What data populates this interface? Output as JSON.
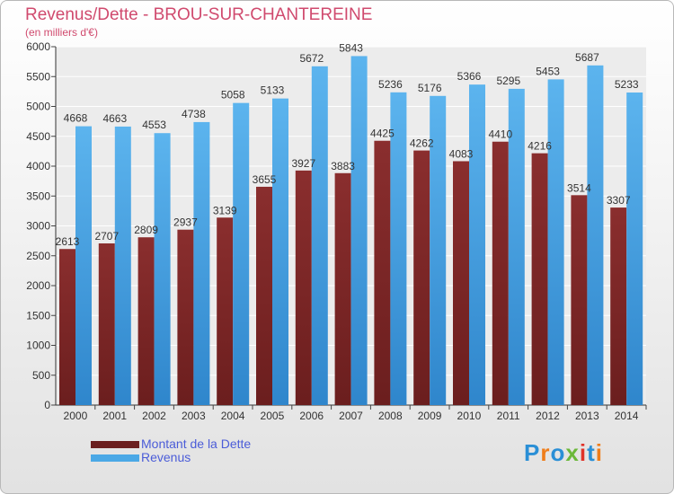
{
  "header": {
    "title": "Revenus/Dette - BROU-SUR-CHANTEREINE",
    "subtitle": "(en milliers d'€)"
  },
  "colors": {
    "title": "#d04a6e",
    "dette": "#6b1e1e",
    "revenus": "#4aa8e6",
    "legend_text": "#4b5cd8"
  },
  "legend": {
    "dette_label": "Montant de la Dette",
    "revenus_label": "Revenus"
  },
  "logo": {
    "text": "Proxiti",
    "letter_colors": [
      "#2a8fd6",
      "#ef7d1a",
      "#2a8fd6",
      "#6bb83a",
      "#e0332a",
      "#2a8fd6",
      "#ef7d1a"
    ]
  },
  "chart_data": {
    "type": "bar",
    "categories": [
      "2000",
      "2001",
      "2002",
      "2003",
      "2004",
      "2005",
      "2006",
      "2007",
      "2008",
      "2009",
      "2010",
      "2011",
      "2012",
      "2013",
      "2014"
    ],
    "series": [
      {
        "name": "Montant de la Dette",
        "values": [
          2613,
          2707,
          2809,
          2937,
          3139,
          3655,
          3927,
          3883,
          4425,
          4262,
          4083,
          4410,
          4216,
          3514,
          3307
        ]
      },
      {
        "name": "Revenus",
        "values": [
          4668,
          4663,
          4553,
          4738,
          5058,
          5133,
          5672,
          5843,
          5236,
          5176,
          5366,
          5295,
          5453,
          5687,
          5233
        ]
      }
    ],
    "ylim": [
      0,
      6000
    ],
    "ytick_step": 500,
    "grid": true
  }
}
